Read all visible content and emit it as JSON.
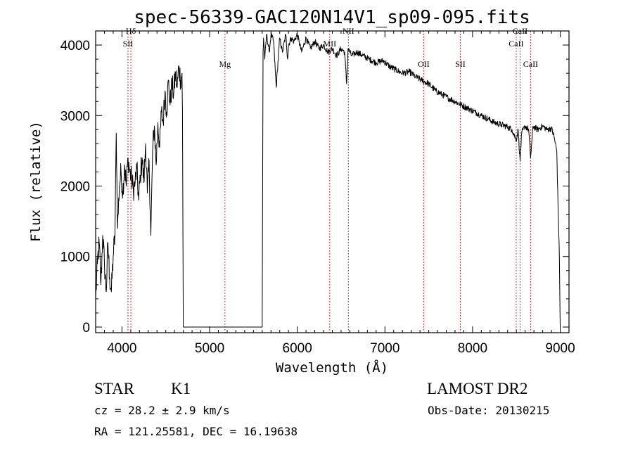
{
  "chart_data": {
    "type": "line",
    "title": "spec-56339-GAC120N14V1_sp09-095.fits",
    "xlabel": "Wavelength (Å)",
    "ylabel": "Flux (relative)",
    "xlim": [
      3700,
      9100
    ],
    "ylim": [
      -80,
      4200
    ],
    "xticks": [
      4000,
      5000,
      6000,
      7000,
      8000,
      9000
    ],
    "yticks": [
      0,
      1000,
      2000,
      3000,
      4000
    ],
    "grid": false,
    "series": [
      {
        "color": "#000000",
        "x": [
          3700,
          3720,
          3740,
          3760,
          3780,
          3800,
          3820,
          3840,
          3860,
          3880,
          3900,
          3920,
          3935,
          3950,
          3970,
          3990,
          4010,
          4030,
          4050,
          4070,
          4090,
          4110,
          4130,
          4150,
          4170,
          4190,
          4210,
          4230,
          4250,
          4270,
          4290,
          4310,
          4330,
          4350,
          4370,
          4390,
          4410,
          4430,
          4450,
          4470,
          4490,
          4510,
          4530,
          4550,
          4570,
          4590,
          4610,
          4630,
          4650,
          4670,
          4685,
          4690,
          4700,
          5500,
          5600,
          5610,
          5615,
          5630,
          5650,
          5680,
          5700,
          5730,
          5760,
          5800,
          5830,
          5870,
          5890,
          5900,
          5930,
          5960,
          6000,
          6050,
          6100,
          6150,
          6200,
          6250,
          6300,
          6350,
          6400,
          6450,
          6500,
          6540,
          6563,
          6580,
          6620,
          6680,
          6750,
          6820,
          6900,
          6980,
          7050,
          7120,
          7200,
          7280,
          7350,
          7420,
          7500,
          7580,
          7650,
          7720,
          7800,
          7870,
          7950,
          8030,
          8100,
          8180,
          8250,
          8330,
          8400,
          8450,
          8498,
          8520,
          8542,
          8560,
          8600,
          8640,
          8662,
          8690,
          8740,
          8800,
          8850,
          8900,
          8930,
          8960,
          8980,
          8990,
          8995,
          9000
        ],
        "y": [
          400,
          900,
          1200,
          600,
          1300,
          900,
          500,
          1200,
          700,
          500,
          1000,
          1300,
          2750,
          1400,
          2000,
          2200,
          1900,
          2300,
          2000,
          2400,
          2200,
          2100,
          1950,
          2050,
          2250,
          1800,
          2150,
          2400,
          2050,
          2600,
          1900,
          2350,
          1300,
          2500,
          2850,
          2300,
          2900,
          2550,
          3050,
          2900,
          3350,
          3050,
          3500,
          3150,
          3450,
          3300,
          3600,
          3400,
          3700,
          3500,
          3600,
          3100,
          0,
          0,
          0,
          3900,
          4100,
          3800,
          4150,
          3900,
          4150,
          4050,
          3400,
          4100,
          3900,
          4150,
          3800,
          4000,
          4100,
          4050,
          4150,
          3900,
          4100,
          3950,
          4050,
          3950,
          4000,
          3900,
          3950,
          3850,
          3950,
          3900,
          3450,
          3950,
          3850,
          3900,
          3850,
          3800,
          3750,
          3780,
          3700,
          3650,
          3600,
          3620,
          3550,
          3500,
          3450,
          3350,
          3300,
          3250,
          3200,
          3150,
          3100,
          3050,
          3000,
          2950,
          2900,
          2870,
          2840,
          2800,
          2650,
          2800,
          2350,
          2750,
          2850,
          2800,
          2400,
          2850,
          2800,
          2850,
          2800,
          2820,
          2700,
          2500,
          1500,
          1000,
          500,
          0
        ]
      }
    ],
    "spectral_lines": [
      {
        "x": 4102,
        "label": "Hδ",
        "row": 0
      },
      {
        "x": 4069,
        "label": "SII",
        "row": 1
      },
      {
        "x": 5175,
        "label": "Mg",
        "row": 2
      },
      {
        "x": 6370,
        "label": "MII",
        "row": 1
      },
      {
        "x": 6583,
        "label": "NII",
        "row": 0
      },
      {
        "x": 7442,
        "label": "OII",
        "row": 2
      },
      {
        "x": 7860,
        "label": "SII",
        "row": 2
      },
      {
        "x": 8498,
        "label": "CaII",
        "row": 1
      },
      {
        "x": 8542,
        "label": "CaII",
        "row": 0
      },
      {
        "x": 8662,
        "label": "CaII",
        "row": 2
      }
    ],
    "line_label_rows": [
      4160,
      3980,
      3690
    ],
    "line_color": "#b00000"
  },
  "info": {
    "class": "STAR",
    "subclass": "K1",
    "survey": "LAMOST DR2",
    "cz": "cz = 28.2 ± 2.9 km/s",
    "obs_date": "Obs-Date: 20130215",
    "coords": "RA = 121.25581, DEC =  16.19638"
  }
}
